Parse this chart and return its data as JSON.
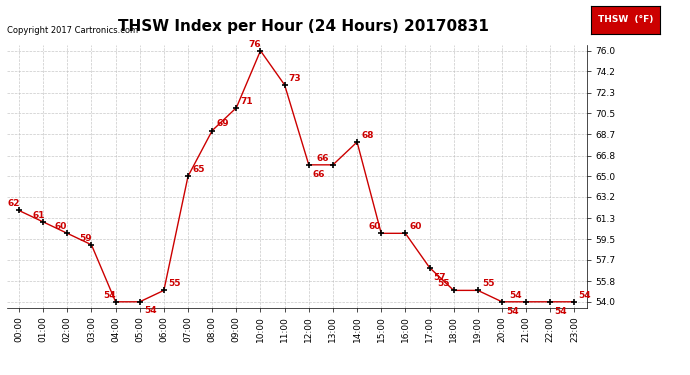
{
  "title": "THSW Index per Hour (24 Hours) 20170831",
  "copyright": "Copyright 2017 Cartronics.com",
  "legend_label": "THSW  (°F)",
  "hours": [
    0,
    1,
    2,
    3,
    4,
    5,
    6,
    7,
    8,
    9,
    10,
    11,
    12,
    13,
    14,
    15,
    16,
    17,
    18,
    19,
    20,
    21,
    22,
    23
  ],
  "values": [
    62,
    61,
    60,
    59,
    54,
    54,
    55,
    65,
    69,
    71,
    76,
    73,
    66,
    66,
    68,
    60,
    60,
    57,
    55,
    55,
    54,
    54,
    54,
    54
  ],
  "xlabels": [
    "00:00",
    "01:00",
    "02:00",
    "03:00",
    "04:00",
    "05:00",
    "06:00",
    "07:00",
    "08:00",
    "09:00",
    "10:00",
    "11:00",
    "12:00",
    "13:00",
    "14:00",
    "15:00",
    "16:00",
    "17:00",
    "18:00",
    "19:00",
    "20:00",
    "21:00",
    "22:00",
    "23:00"
  ],
  "yticks": [
    54.0,
    55.8,
    57.7,
    59.5,
    61.3,
    63.2,
    65.0,
    66.8,
    68.7,
    70.5,
    72.3,
    74.2,
    76.0
  ],
  "ylim": [
    53.5,
    76.5
  ],
  "xlim": [
    -0.5,
    23.5
  ],
  "line_color": "#cc0000",
  "marker_color": "#000000",
  "label_color": "#cc0000",
  "bg_color": "#ffffff",
  "grid_color": "#bbbbbb",
  "title_fontsize": 11,
  "axis_fontsize": 6.5,
  "label_fontsize": 6.5,
  "legend_bg": "#cc0000",
  "legend_text_color": "#ffffff"
}
